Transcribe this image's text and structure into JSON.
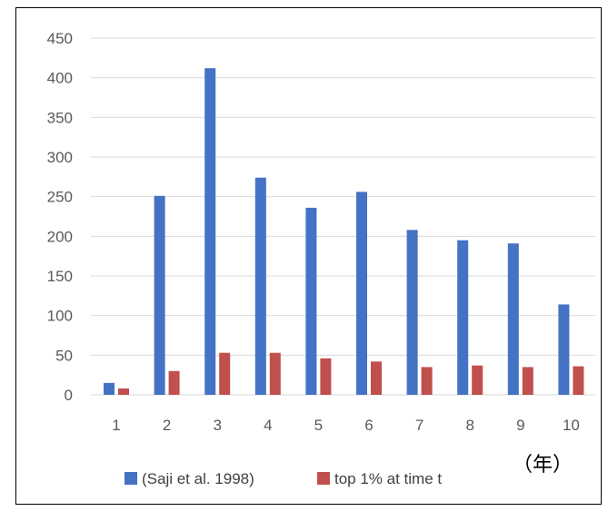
{
  "chart_data": {
    "type": "bar",
    "categories": [
      "1",
      "2",
      "3",
      "4",
      "5",
      "6",
      "7",
      "8",
      "9",
      "10"
    ],
    "series": [
      {
        "name": "(Saji et al. 1998)",
        "color": "#4472C4",
        "values": [
          15,
          251,
          412,
          274,
          236,
          256,
          208,
          195,
          191,
          114
        ]
      },
      {
        "name": "top 1% at time t",
        "color": "#C0504D",
        "values": [
          8,
          30,
          53,
          53,
          46,
          42,
          35,
          37,
          35,
          36
        ]
      }
    ],
    "yticks": [
      0,
      50,
      100,
      150,
      200,
      250,
      300,
      350,
      400,
      450
    ],
    "ylim": [
      0,
      450
    ],
    "x_unit_label": "（年）",
    "grid": true,
    "legend_position": "bottom"
  }
}
